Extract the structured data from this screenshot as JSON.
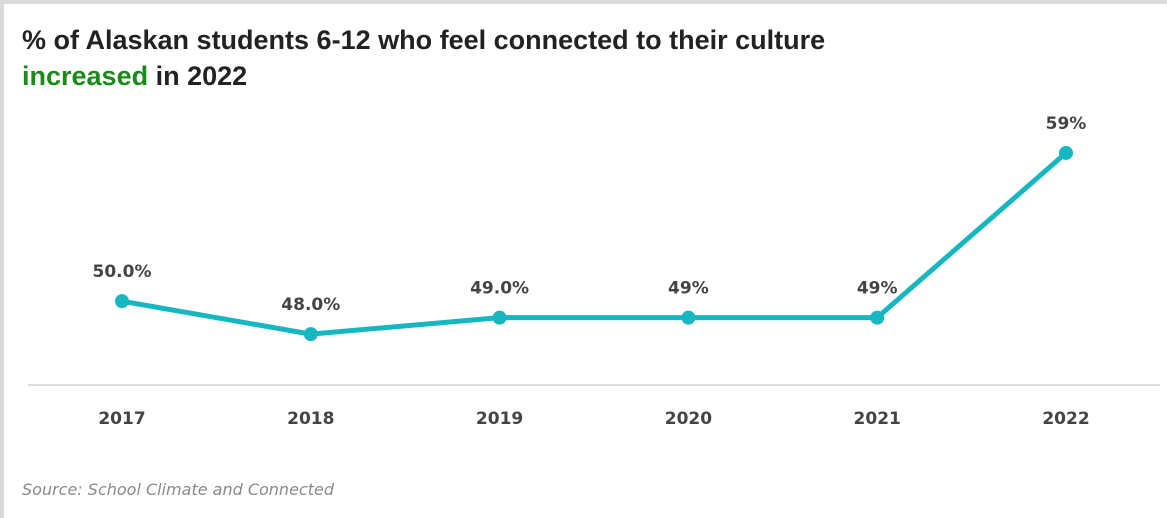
{
  "title": {
    "line1": "% of Alaskan students 6-12 who feel connected to their culture",
    "highlight": "increased",
    "line2_rest": " in 2022"
  },
  "source": "Source: School Climate and Connected",
  "colors": {
    "series": "#16b7c1",
    "highlight": "#1a8a1a",
    "title": "#222222",
    "labels": "#444444",
    "axis": "#d0d0d0",
    "source": "#8a8a8a"
  },
  "chart_data": {
    "type": "line",
    "title": "% of Alaskan students 6-12 who feel connected to their culture increased in 2022",
    "xlabel": "",
    "ylabel": "",
    "categories": [
      "2017",
      "2018",
      "2019",
      "2020",
      "2021",
      "2022"
    ],
    "values": [
      50.0,
      48.0,
      49.0,
      49.0,
      49.0,
      59.0
    ],
    "data_labels": [
      "50.0%",
      "48.0%",
      "49.0%",
      "49%",
      "49%",
      "59%"
    ],
    "ylim": [
      44,
      61
    ],
    "grid": false,
    "legend": "none"
  }
}
